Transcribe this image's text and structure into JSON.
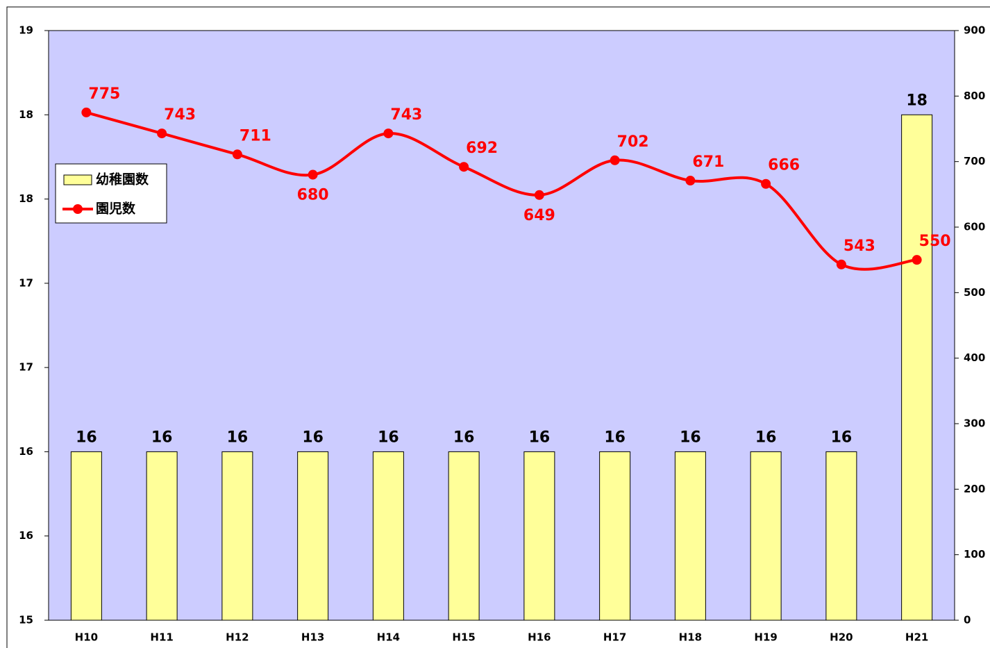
{
  "chart_data": {
    "type": "bar-line",
    "categories": [
      "H10",
      "H11",
      "H12",
      "H13",
      "H14",
      "H15",
      "H16",
      "H17",
      "H18",
      "H19",
      "H20",
      "H21"
    ],
    "series": [
      {
        "name": "幼稚園数",
        "type": "bar",
        "color": "#ffff99",
        "axis": "y",
        "values": [
          16,
          16,
          16,
          16,
          16,
          16,
          16,
          16,
          16,
          16,
          16,
          18
        ]
      },
      {
        "name": "園児数",
        "type": "line",
        "color": "#ff0000",
        "axis": "y2",
        "values": [
          775,
          743,
          711,
          680,
          743,
          692,
          649,
          702,
          671,
          666,
          543,
          550
        ]
      }
    ],
    "ylim": [
      15,
      18.5
    ],
    "yticks": [
      15,
      {
        "value": 15.5,
        "label": "16"
      },
      16,
      {
        "value": 16.5,
        "label": "17"
      },
      17,
      {
        "value": 17.5,
        "label": "18"
      },
      18,
      {
        "value": 18.5,
        "label": "19"
      }
    ],
    "y2lim": [
      0,
      900
    ],
    "y2ticks": [
      0,
      100,
      200,
      300,
      400,
      500,
      600,
      700,
      800,
      900
    ],
    "plot_background": "#ccccff",
    "legend": "left"
  }
}
